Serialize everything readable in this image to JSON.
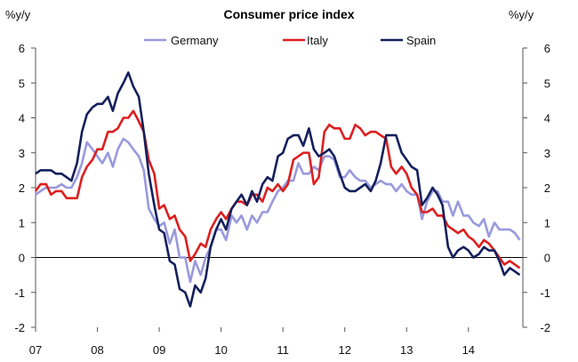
{
  "chart_data": {
    "type": "line",
    "title": "Consumer price index",
    "ylabel_left": "%y/y",
    "ylabel_right": "%y/y",
    "ylim": [
      -2,
      6
    ],
    "yticks": [
      -2,
      -1,
      0,
      1,
      2,
      3,
      4,
      5,
      6
    ],
    "xlim": [
      2007.0,
      2014.88
    ],
    "xticks": [
      {
        "label": "07",
        "x": 2007.0
      },
      {
        "label": "08",
        "x": 2008.0
      },
      {
        "label": "09",
        "x": 2009.0
      },
      {
        "label": "10",
        "x": 2010.0
      },
      {
        "label": "11",
        "x": 2011.0
      },
      {
        "label": "12",
        "x": 2012.0
      },
      {
        "label": "13",
        "x": 2013.0
      },
      {
        "label": "14",
        "x": 2014.0
      }
    ],
    "grid": false,
    "legend_position": "top",
    "series": [
      {
        "name": "Germany",
        "color": "#9999dd",
        "x": [
          2007.0,
          2007.08,
          2007.17,
          2007.25,
          2007.33,
          2007.42,
          2007.5,
          2007.58,
          2007.67,
          2007.75,
          2007.83,
          2007.92,
          2008.0,
          2008.08,
          2008.17,
          2008.25,
          2008.33,
          2008.42,
          2008.5,
          2008.58,
          2008.67,
          2008.75,
          2008.83,
          2008.92,
          2009.0,
          2009.08,
          2009.17,
          2009.25,
          2009.33,
          2009.42,
          2009.5,
          2009.58,
          2009.67,
          2009.75,
          2009.83,
          2009.92,
          2010.0,
          2010.08,
          2010.17,
          2010.25,
          2010.33,
          2010.42,
          2010.5,
          2010.58,
          2010.67,
          2010.75,
          2010.83,
          2010.92,
          2011.0,
          2011.08,
          2011.17,
          2011.25,
          2011.33,
          2011.42,
          2011.5,
          2011.58,
          2011.67,
          2011.75,
          2011.83,
          2011.92,
          2012.0,
          2012.08,
          2012.17,
          2012.25,
          2012.33,
          2012.42,
          2012.5,
          2012.58,
          2012.67,
          2012.75,
          2012.83,
          2012.92,
          2013.0,
          2013.08,
          2013.17,
          2013.25,
          2013.33,
          2013.42,
          2013.5,
          2013.58,
          2013.67,
          2013.75,
          2013.83,
          2013.92,
          2014.0,
          2014.08,
          2014.17,
          2014.25,
          2014.33,
          2014.42,
          2014.5,
          2014.58,
          2014.67,
          2014.75,
          2014.83
        ],
        "y": [
          1.8,
          1.9,
          2.0,
          2.0,
          2.0,
          2.1,
          2.0,
          2.0,
          2.3,
          2.7,
          3.3,
          3.1,
          2.9,
          2.7,
          3.0,
          2.6,
          3.1,
          3.4,
          3.3,
          3.1,
          2.9,
          2.5,
          1.4,
          1.1,
          0.9,
          1.0,
          0.4,
          0.8,
          0.0,
          0.0,
          -0.7,
          -0.1,
          -0.5,
          0.0,
          0.3,
          0.8,
          0.8,
          0.5,
          1.2,
          1.0,
          1.2,
          0.8,
          1.2,
          1.0,
          1.3,
          1.3,
          1.6,
          1.9,
          2.0,
          2.2,
          2.2,
          2.7,
          2.4,
          2.4,
          2.6,
          2.5,
          2.9,
          2.9,
          2.8,
          2.3,
          2.3,
          2.5,
          2.3,
          2.2,
          2.2,
          2.0,
          2.1,
          2.2,
          2.1,
          2.1,
          1.9,
          2.1,
          1.9,
          1.8,
          1.8,
          1.1,
          1.6,
          1.9,
          1.9,
          1.6,
          1.6,
          1.2,
          1.6,
          1.2,
          1.2,
          1.0,
          0.9,
          1.1,
          0.6,
          1.0,
          0.8,
          0.8,
          0.8,
          0.7,
          0.5
        ]
      },
      {
        "name": "Italy",
        "color": "#dd1f1f",
        "x": [
          2007.0,
          2007.08,
          2007.17,
          2007.25,
          2007.33,
          2007.42,
          2007.5,
          2007.58,
          2007.67,
          2007.75,
          2007.83,
          2007.92,
          2008.0,
          2008.08,
          2008.17,
          2008.25,
          2008.33,
          2008.42,
          2008.5,
          2008.58,
          2008.67,
          2008.75,
          2008.83,
          2008.92,
          2009.0,
          2009.08,
          2009.17,
          2009.25,
          2009.33,
          2009.42,
          2009.5,
          2009.58,
          2009.67,
          2009.75,
          2009.83,
          2009.92,
          2010.0,
          2010.08,
          2010.17,
          2010.25,
          2010.33,
          2010.42,
          2010.5,
          2010.58,
          2010.67,
          2010.75,
          2010.83,
          2010.92,
          2011.0,
          2011.08,
          2011.17,
          2011.25,
          2011.33,
          2011.42,
          2011.5,
          2011.58,
          2011.67,
          2011.75,
          2011.83,
          2011.92,
          2012.0,
          2012.08,
          2012.17,
          2012.25,
          2012.33,
          2012.42,
          2012.5,
          2012.58,
          2012.67,
          2012.75,
          2012.83,
          2012.92,
          2013.0,
          2013.08,
          2013.17,
          2013.25,
          2013.33,
          2013.42,
          2013.5,
          2013.58,
          2013.67,
          2013.75,
          2013.83,
          2013.92,
          2014.0,
          2014.08,
          2014.17,
          2014.25,
          2014.33,
          2014.42,
          2014.5,
          2014.58,
          2014.67,
          2014.75,
          2014.83
        ],
        "y": [
          1.9,
          2.1,
          2.1,
          1.8,
          1.9,
          1.9,
          1.7,
          1.7,
          1.7,
          2.3,
          2.6,
          2.8,
          3.1,
          3.1,
          3.6,
          3.6,
          3.7,
          4.0,
          4.0,
          4.2,
          3.9,
          3.6,
          2.8,
          2.4,
          1.4,
          1.5,
          1.1,
          1.2,
          0.8,
          0.6,
          -0.1,
          0.1,
          0.4,
          0.3,
          0.8,
          1.1,
          1.3,
          1.1,
          1.4,
          1.6,
          1.6,
          1.5,
          1.8,
          1.8,
          1.6,
          2.0,
          1.9,
          2.1,
          1.9,
          2.1,
          2.8,
          2.9,
          3.0,
          3.0,
          2.1,
          2.3,
          3.6,
          3.8,
          3.7,
          3.7,
          3.4,
          3.4,
          3.8,
          3.7,
          3.5,
          3.6,
          3.6,
          3.5,
          3.4,
          2.6,
          2.4,
          2.6,
          2.4,
          2.0,
          1.8,
          1.3,
          1.3,
          1.4,
          1.2,
          1.2,
          0.9,
          0.8,
          0.7,
          0.8,
          0.6,
          0.5,
          0.3,
          0.5,
          0.4,
          0.2,
          0.0,
          -0.2,
          -0.1,
          -0.2,
          -0.3
        ]
      },
      {
        "name": "Spain",
        "color": "#14205c",
        "x": [
          2007.0,
          2007.08,
          2007.17,
          2007.25,
          2007.33,
          2007.42,
          2007.5,
          2007.58,
          2007.67,
          2007.75,
          2007.83,
          2007.92,
          2008.0,
          2008.08,
          2008.17,
          2008.25,
          2008.33,
          2008.42,
          2008.5,
          2008.58,
          2008.67,
          2008.75,
          2008.83,
          2008.92,
          2009.0,
          2009.08,
          2009.17,
          2009.25,
          2009.33,
          2009.42,
          2009.5,
          2009.58,
          2009.67,
          2009.75,
          2009.83,
          2009.92,
          2010.0,
          2010.08,
          2010.17,
          2010.25,
          2010.33,
          2010.42,
          2010.5,
          2010.58,
          2010.67,
          2010.75,
          2010.83,
          2010.92,
          2011.0,
          2011.08,
          2011.17,
          2011.25,
          2011.33,
          2011.42,
          2011.5,
          2011.58,
          2011.67,
          2011.75,
          2011.83,
          2011.92,
          2012.0,
          2012.08,
          2012.17,
          2012.25,
          2012.33,
          2012.42,
          2012.5,
          2012.58,
          2012.67,
          2012.75,
          2012.83,
          2012.92,
          2013.0,
          2013.08,
          2013.17,
          2013.25,
          2013.33,
          2013.42,
          2013.5,
          2013.58,
          2013.67,
          2013.75,
          2013.83,
          2013.92,
          2014.0,
          2014.08,
          2014.17,
          2014.25,
          2014.33,
          2014.42,
          2014.5,
          2014.58,
          2014.67,
          2014.75,
          2014.83
        ],
        "y": [
          2.4,
          2.5,
          2.5,
          2.5,
          2.4,
          2.4,
          2.3,
          2.2,
          2.7,
          3.6,
          4.1,
          4.3,
          4.4,
          4.4,
          4.6,
          4.2,
          4.7,
          5.0,
          5.3,
          4.9,
          4.6,
          3.6,
          2.4,
          1.5,
          0.8,
          0.7,
          -0.1,
          -0.2,
          -0.9,
          -1.0,
          -1.4,
          -0.8,
          -1.0,
          -0.6,
          0.3,
          0.8,
          1.1,
          0.8,
          1.4,
          1.6,
          1.8,
          1.5,
          1.9,
          1.6,
          2.1,
          2.3,
          2.2,
          2.9,
          3.0,
          3.4,
          3.5,
          3.5,
          3.2,
          3.7,
          3.1,
          2.9,
          3.0,
          3.1,
          2.9,
          2.4,
          2.0,
          1.9,
          1.9,
          2.0,
          2.1,
          1.9,
          2.2,
          2.7,
          3.5,
          3.5,
          3.5,
          3.0,
          2.8,
          2.6,
          2.5,
          1.5,
          1.7,
          2.0,
          1.8,
          1.5,
          0.3,
          0.0,
          0.2,
          0.3,
          0.2,
          0.0,
          0.1,
          0.3,
          0.2,
          0.2,
          -0.1,
          -0.5,
          -0.3,
          -0.4,
          -0.5
        ]
      }
    ]
  }
}
